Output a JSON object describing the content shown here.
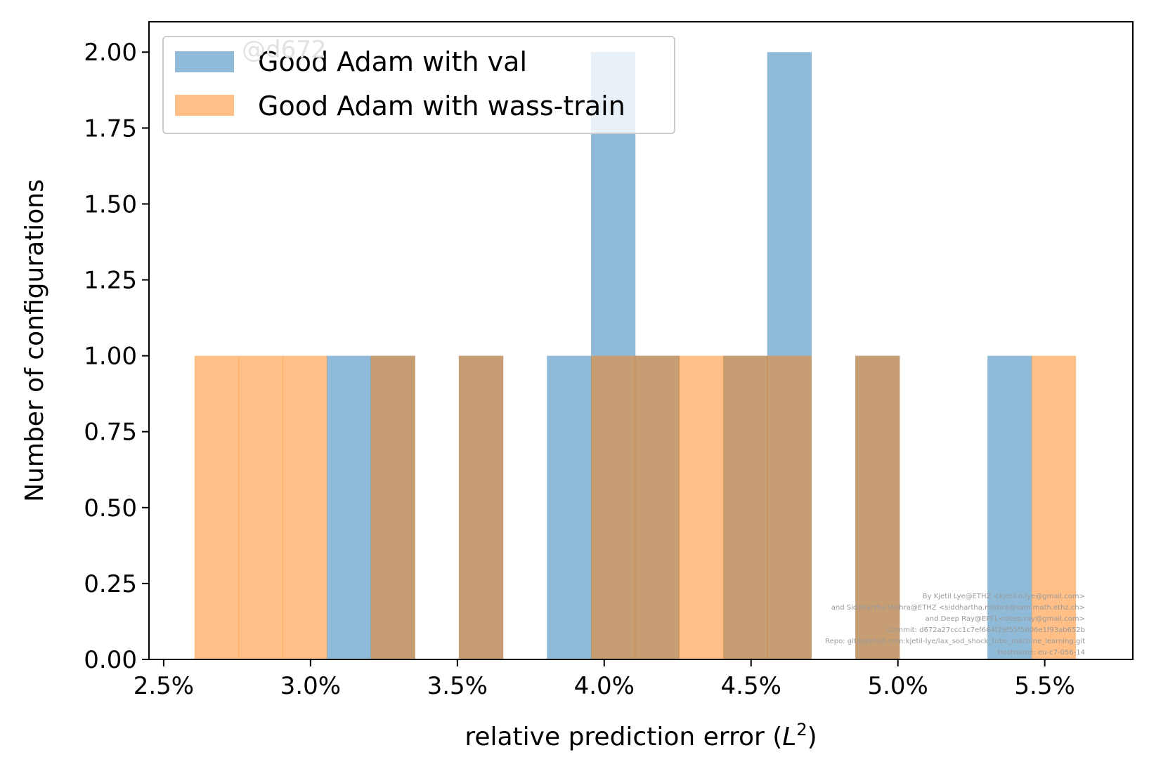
{
  "chart_data": {
    "type": "bar",
    "title": "",
    "xlabel": "relative prediction error (",
    "xlabel_math": "L",
    "xlabel_sup": "2",
    "xlabel_close": ")",
    "ylabel": "Number of configurations",
    "xlim": [
      0.0245,
      0.058
    ],
    "ylim": [
      0,
      2.1
    ],
    "xticks": [
      0.025,
      0.03,
      0.035,
      0.04,
      0.045,
      0.05,
      0.055
    ],
    "xtick_labels": [
      "2.5%",
      "3.0%",
      "3.5%",
      "4.0%",
      "4.5%",
      "5.0%",
      "5.5%"
    ],
    "yticks": [
      0,
      0.25,
      0.5,
      0.75,
      1.0,
      1.25,
      1.5,
      1.75,
      2.0
    ],
    "ytick_labels": [
      "0.00",
      "0.25",
      "0.50",
      "0.75",
      "1.00",
      "1.25",
      "1.50",
      "1.75",
      "2.00"
    ],
    "legend_position": "top-left",
    "grid": false,
    "series": [
      {
        "name": "Good Adam with val",
        "color": "#1f77b4",
        "alpha": 0.5,
        "bins": [
          {
            "x0": 0.03055,
            "x1": 0.03205,
            "count": 1
          },
          {
            "x0": 0.03205,
            "x1": 0.03355,
            "count": 1
          },
          {
            "x0": 0.03505,
            "x1": 0.03655,
            "count": 1
          },
          {
            "x0": 0.03805,
            "x1": 0.03955,
            "count": 1
          },
          {
            "x0": 0.03955,
            "x1": 0.04105,
            "count": 2
          },
          {
            "x0": 0.04105,
            "x1": 0.04255,
            "count": 1
          },
          {
            "x0": 0.04405,
            "x1": 0.04555,
            "count": 1
          },
          {
            "x0": 0.04555,
            "x1": 0.04705,
            "count": 2
          },
          {
            "x0": 0.04855,
            "x1": 0.05005,
            "count": 1
          },
          {
            "x0": 0.05305,
            "x1": 0.05455,
            "count": 1
          }
        ]
      },
      {
        "name": "Good Adam with wass-train",
        "color": "#ff7f0e",
        "alpha": 0.5,
        "bins": [
          {
            "x0": 0.02605,
            "x1": 0.02755,
            "count": 1
          },
          {
            "x0": 0.02755,
            "x1": 0.02905,
            "count": 1
          },
          {
            "x0": 0.02905,
            "x1": 0.03055,
            "count": 1
          },
          {
            "x0": 0.03205,
            "x1": 0.03355,
            "count": 1
          },
          {
            "x0": 0.03505,
            "x1": 0.03655,
            "count": 1
          },
          {
            "x0": 0.03955,
            "x1": 0.04105,
            "count": 1
          },
          {
            "x0": 0.04105,
            "x1": 0.04255,
            "count": 1
          },
          {
            "x0": 0.04255,
            "x1": 0.04405,
            "count": 1
          },
          {
            "x0": 0.04405,
            "x1": 0.04555,
            "count": 1
          },
          {
            "x0": 0.04555,
            "x1": 0.04705,
            "count": 1
          },
          {
            "x0": 0.04855,
            "x1": 0.05005,
            "count": 1
          },
          {
            "x0": 0.05455,
            "x1": 0.05605,
            "count": 1
          }
        ]
      }
    ]
  },
  "watermark": "@d672",
  "credits": [
    "By Kjetil Lye@ETHZ <kjetil.o.lye@gmail.com>",
    "and Siddhartha Mishra@ETHZ <siddhartha.mishra@sam.math.ethz.ch>",
    "and Deep Ray@EPFL<deep.ray@gmail.com>",
    "Commit: d672a27ccc1c7ef664f29f55f5806e1f93ab652b",
    "Repo: git@github.com:kjetil-lye/lax_sod_shock_tube_machine_learning.git",
    "Hostname: eu-c7-056-14"
  ]
}
